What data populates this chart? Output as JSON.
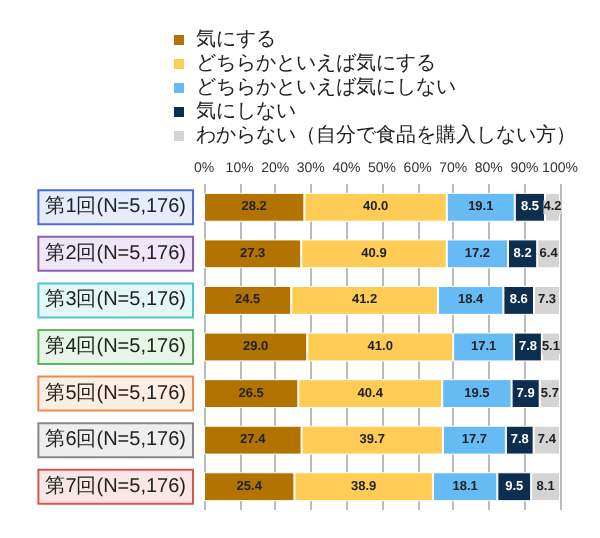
{
  "chart_data": {
    "type": "bar",
    "orientation": "horizontal",
    "stacked": true,
    "categories": [
      "第1回(N=5,176)",
      "第2回(N=5,176)",
      "第3回(N=5,176)",
      "第4回(N=5,176)",
      "第5回(N=5,176)",
      "第6回(N=5,176)",
      "第7回(N=5,176)"
    ],
    "series": [
      {
        "name": "気にする",
        "color": "#b27300",
        "values": [
          28.2,
          27.3,
          24.5,
          29.0,
          26.5,
          27.4,
          25.4
        ],
        "value_labels": [
          "28.2",
          "27.3",
          "24.5",
          "29.0",
          "26.5",
          "27.4",
          "25.4"
        ]
      },
      {
        "name": "どちらかといえば気にする",
        "color": "#ffcc55",
        "values": [
          40.0,
          40.9,
          41.2,
          41.0,
          40.4,
          39.7,
          38.9
        ],
        "value_labels": [
          "40.0",
          "40.9",
          "41.2",
          "41.0",
          "40.4",
          "39.7",
          "38.9"
        ]
      },
      {
        "name": "どちらかといえば気にしない",
        "color": "#66bbf5",
        "values": [
          19.1,
          17.2,
          18.4,
          17.1,
          19.5,
          17.7,
          18.1
        ],
        "value_labels": [
          "19.1",
          "17.2",
          "18.4",
          "17.1",
          "19.5",
          "17.7",
          "18.1"
        ]
      },
      {
        "name": "気にしない",
        "color": "#0d2f4f",
        "values": [
          8.5,
          8.2,
          8.6,
          7.8,
          7.9,
          7.8,
          9.5
        ],
        "value_labels": [
          "8.5",
          "8.2",
          "8.6",
          "7.8",
          "7.9",
          "7.8",
          "9.5"
        ]
      },
      {
        "name": "わからない（自分で食品を購入しない方）",
        "color": "#d4d4d4",
        "values": [
          4.2,
          6.4,
          7.3,
          5.1,
          5.7,
          7.4,
          8.1
        ],
        "value_labels": [
          "4.2",
          "6.4",
          "7.3",
          "5.1",
          "5.7",
          "7.4",
          "8.1"
        ]
      }
    ],
    "xlim": [
      0,
      100
    ],
    "xticks": [
      {
        "value": 0,
        "label": "0%"
      },
      {
        "value": 10,
        "label": "10%"
      },
      {
        "value": 20,
        "label": "20%"
      },
      {
        "value": 30,
        "label": "30%"
      },
      {
        "value": 40,
        "label": "40%"
      },
      {
        "value": 50,
        "label": "50%"
      },
      {
        "value": 60,
        "label": "60%"
      },
      {
        "value": 70,
        "label": "70%"
      },
      {
        "value": 80,
        "label": "80%"
      },
      {
        "value": 90,
        "label": "90%"
      },
      {
        "value": 100,
        "label": "100%"
      }
    ],
    "grid": "x",
    "legend": "top"
  }
}
